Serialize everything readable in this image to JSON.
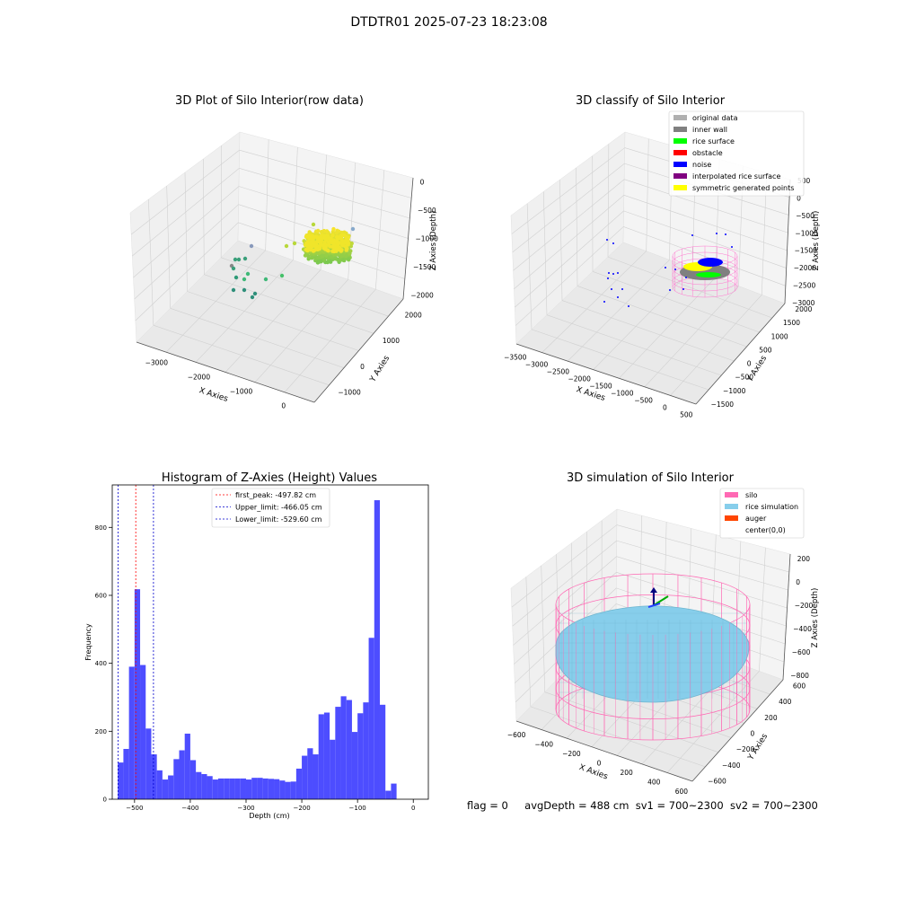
{
  "suptitle": "DTDTR01 2025-07-23 18:23:08",
  "footer": {
    "flag": "flag = 0",
    "avg_depth": "avgDepth = 488 cm",
    "sv1": "sv1 = 700~2300",
    "sv2": "sv2 = 700~2300"
  },
  "colors": {
    "histogram_bar": "#4d4dff",
    "peak_line": "#ff0000",
    "limit_line": "#0000cc",
    "silo_wire": "#ff69b4",
    "rice_simulation": "#87ceeb",
    "auger": "#ff4500",
    "rice_surface_green": "#00ff00",
    "noise_blue": "#0000ff",
    "symmetric_yellow": "#ffff00",
    "inner_wall_gray": "#808080",
    "original_data_gray": "#b0b0b0",
    "interpolated_purple": "#800080",
    "obstacle_red": "#ff0000"
  },
  "chart_data": [
    {
      "type": "scatter3d",
      "title": "3D Plot of Silo Interior(row data)",
      "xlabel": "X Axies",
      "ylabel": "Y Axies",
      "zlabel": "Z Axies (Depth)",
      "xticks": [
        "−3000",
        "−2000",
        "−1000",
        "0"
      ],
      "yticks": [
        "−1000",
        "0",
        "1000",
        "2000"
      ],
      "zticks": [
        "0",
        "−500",
        "−1000",
        "−1500",
        "−2000"
      ],
      "grid": true
    },
    {
      "type": "scatter3d",
      "title": "3D classify of Silo Interior",
      "xlabel": "X Axies",
      "ylabel": "Y Axies",
      "zlabel": "Z Axies (Depth)",
      "xticks": [
        "−3500",
        "−3000",
        "−2500",
        "−2000",
        "−1500",
        "−1000",
        "−500",
        "0",
        "500"
      ],
      "yticks": [
        "−1500",
        "−1000",
        "−500",
        "0",
        "500",
        "1000",
        "1500",
        "2000"
      ],
      "zticks": [
        "500",
        "0",
        "−500",
        "−1000",
        "−1500",
        "−2000",
        "−2500",
        "−3000"
      ],
      "legend": [
        {
          "label": "original data",
          "color": "#b0b0b0"
        },
        {
          "label": "inner wall",
          "color": "#808080"
        },
        {
          "label": "rice surface",
          "color": "#00ff00"
        },
        {
          "label": "obstacle",
          "color": "#ff0000"
        },
        {
          "label": "noise",
          "color": "#0000ff"
        },
        {
          "label": "interpolated rice surface",
          "color": "#800080"
        },
        {
          "label": "symmetric generated points",
          "color": "#ffff00"
        }
      ],
      "legend_position": "upper right",
      "grid": true
    },
    {
      "type": "bar",
      "title": "Histogram of Z-Axies (Height) Values",
      "xlabel": "Depth (cm)",
      "ylabel": "Frequency",
      "xlim": [
        -540,
        27
      ],
      "ylim": [
        0,
        925
      ],
      "xticks": [
        -500,
        -400,
        -300,
        -200,
        -100,
        0
      ],
      "xtick_labels": [
        "−500",
        "−400",
        "−300",
        "−200",
        "−100",
        "0"
      ],
      "yticks": [
        0,
        200,
        400,
        600,
        800
      ],
      "bin_start": -530,
      "bin_width": 10,
      "values": [
        108,
        148,
        390,
        618,
        395,
        208,
        132,
        85,
        58,
        70,
        118,
        144,
        193,
        115,
        80,
        74,
        68,
        58,
        61,
        61,
        61,
        61,
        61,
        58,
        63,
        63,
        61,
        60,
        59,
        55,
        51,
        52,
        90,
        128,
        150,
        132,
        250,
        255,
        175,
        272,
        303,
        292,
        198,
        253,
        285,
        475,
        880,
        278,
        25,
        46
      ],
      "vlines": [
        {
          "x": -497.82,
          "style": "red dashed",
          "label": "first_peak: -497.82 cm"
        },
        {
          "x": -466.05,
          "style": "blue dashed",
          "label": "Upper_limit: -466.05 cm"
        },
        {
          "x": -529.6,
          "style": "blue dashed",
          "label": "Lower_limit: -529.60 cm"
        }
      ],
      "legend_position": "upper center"
    },
    {
      "type": "surface3d",
      "title": "3D simulation of Silo Interior",
      "xlabel": "X Axies",
      "ylabel": "Y Axies",
      "zlabel": "Z Axies (Depth)",
      "xticks": [
        "−600",
        "−400",
        "−200",
        "0",
        "200",
        "400",
        "600"
      ],
      "yticks": [
        "−600",
        "−400",
        "−200",
        "0",
        "200",
        "400",
        "600"
      ],
      "zticks": [
        "200",
        "0",
        "−200",
        "−400",
        "−600",
        "−800"
      ],
      "legend": [
        {
          "label": "silo",
          "color": "#ff69b4"
        },
        {
          "label": "rice simulation",
          "color": "#87ceeb"
        },
        {
          "label": "auger",
          "color": "#ff4500"
        },
        {
          "label": "center(0,0)",
          "color": ""
        }
      ],
      "legend_position": "upper right",
      "grid": true
    }
  ]
}
